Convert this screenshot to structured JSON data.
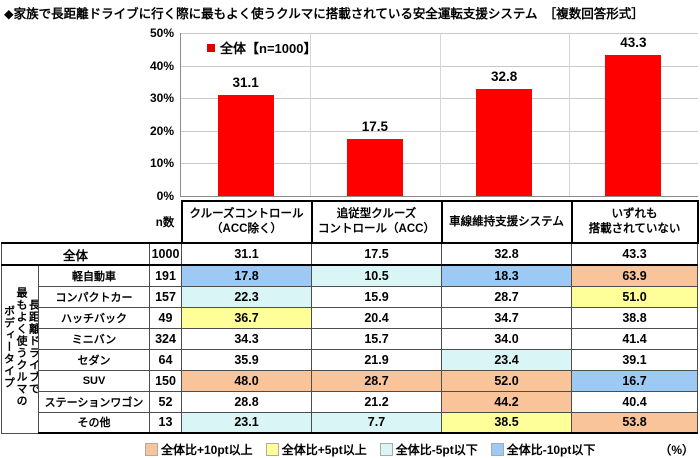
{
  "title": "◆家族で長距離ドライブに行く際に最もよく使うクルマに搭載されている安全運転支援システム　［複数回答形式］",
  "colors": {
    "bar": "#FF0000",
    "legend_swatch": "#E00000",
    "plus10": "#F9C499",
    "plus5": "#FFFF99",
    "minus5": "#D9F5F5",
    "minus10": "#9CCAF5"
  },
  "chart_data": {
    "type": "bar",
    "title": "家族で長距離ドライブに行く際に最もよく使うクルマに搭載されている安全運転支援システム",
    "series_name": "全体【n=1000】",
    "categories": [
      "クルーズコントロール（ACC除く）",
      "追従型クルーズコントロール（ACC）",
      "車線維持支援システム",
      "いずれも搭載されていない"
    ],
    "values": [
      31.1,
      17.5,
      32.8,
      43.3
    ],
    "ylim": [
      0,
      50
    ],
    "ytick_labels": [
      "0%",
      "10%",
      "20%",
      "30%",
      "40%",
      "50%"
    ],
    "grid": true,
    "legend_position": "top-left-inside"
  },
  "table": {
    "n_label": "n数",
    "col_headers": [
      {
        "lines": [
          "クルーズコントロール",
          "（ACC除く）"
        ]
      },
      {
        "lines": [
          "追従型クルーズ",
          "コントロール（ACC）"
        ]
      },
      {
        "lines": [
          "車線維持支援システム"
        ]
      },
      {
        "lines": [
          "いずれも",
          "搭載されていない"
        ]
      }
    ],
    "total_row": {
      "label": "全体",
      "n": "1000",
      "values": [
        "31.1",
        "17.5",
        "32.8",
        "43.3"
      ]
    },
    "side_label_lines": [
      "長距離ドライブで",
      "最もよく使うクルマの",
      "ボディータイプ"
    ],
    "rows": [
      {
        "label": "軽自動車",
        "n": "191",
        "values": [
          "17.8",
          "10.5",
          "18.3",
          "63.9"
        ],
        "colors": [
          "minus10",
          "minus5",
          "minus10",
          "plus10"
        ]
      },
      {
        "label": "コンパクトカー",
        "n": "157",
        "values": [
          "22.3",
          "15.9",
          "28.7",
          "51.0"
        ],
        "colors": [
          "minus5",
          "",
          "",
          "plus5"
        ]
      },
      {
        "label": "ハッチバック",
        "n": "49",
        "values": [
          "36.7",
          "20.4",
          "34.7",
          "38.8"
        ],
        "colors": [
          "plus5",
          "",
          "",
          ""
        ]
      },
      {
        "label": "ミニバン",
        "n": "324",
        "values": [
          "34.3",
          "15.7",
          "34.0",
          "41.4"
        ],
        "colors": [
          "",
          "",
          "",
          ""
        ]
      },
      {
        "label": "セダン",
        "n": "64",
        "values": [
          "35.9",
          "21.9",
          "23.4",
          "39.1"
        ],
        "colors": [
          "",
          "",
          "minus5",
          ""
        ]
      },
      {
        "label": "SUV",
        "n": "150",
        "values": [
          "48.0",
          "28.7",
          "52.0",
          "16.7"
        ],
        "colors": [
          "plus10",
          "plus10",
          "plus10",
          "minus10"
        ]
      },
      {
        "label": "ステーションワゴン",
        "n": "52",
        "values": [
          "28.8",
          "21.2",
          "44.2",
          "40.4"
        ],
        "colors": [
          "",
          "",
          "plus10",
          ""
        ]
      },
      {
        "label": "その他",
        "n": "13",
        "values": [
          "23.1",
          "7.7",
          "38.5",
          "53.8"
        ],
        "colors": [
          "minus5",
          "minus5",
          "plus5",
          "plus10"
        ]
      }
    ]
  },
  "legend": {
    "items": [
      {
        "label": "全体比+10pt以上",
        "color_key": "plus10"
      },
      {
        "label": "全体比+5pt以上",
        "color_key": "plus5"
      },
      {
        "label": "全体比-5pt以下",
        "color_key": "minus5"
      },
      {
        "label": "全体比-10pt以下",
        "color_key": "minus10"
      }
    ],
    "unit": "（%）"
  }
}
